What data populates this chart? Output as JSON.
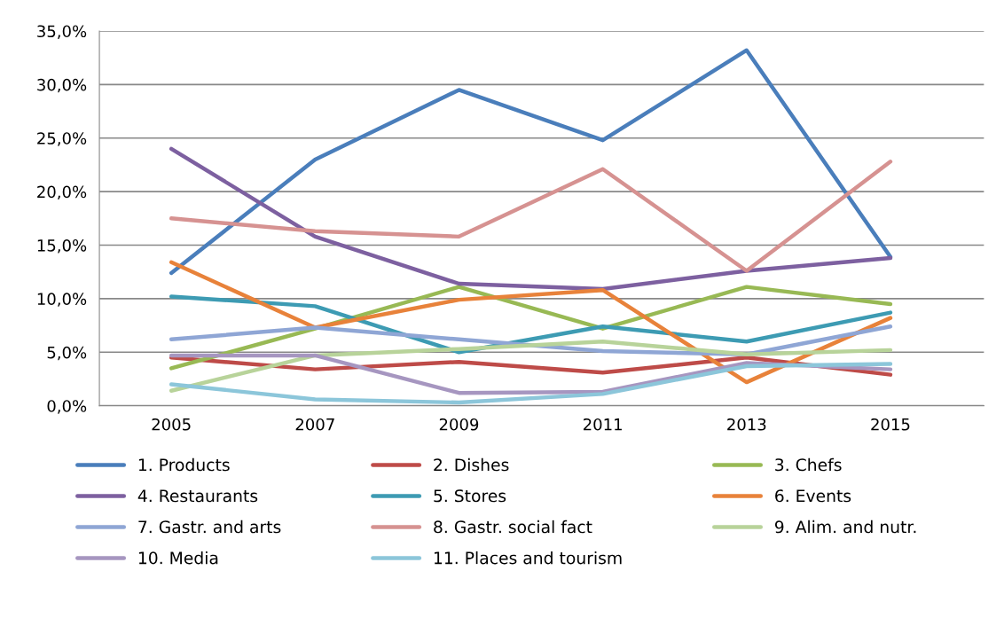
{
  "chart_data": {
    "type": "line",
    "categories": [
      "2005",
      "2007",
      "2009",
      "2011",
      "2013",
      "2015"
    ],
    "ylim": [
      0,
      35
    ],
    "yticks": [
      {
        "value": 0,
        "label": "0,0%"
      },
      {
        "value": 5,
        "label": "5,0%"
      },
      {
        "value": 10,
        "label": "10,0%"
      },
      {
        "value": 15,
        "label": "15,0%"
      },
      {
        "value": 20,
        "label": "20,0%"
      },
      {
        "value": 25,
        "label": "25,0%"
      },
      {
        "value": 30,
        "label": "30,0%"
      },
      {
        "value": 35,
        "label": "35,0%"
      }
    ],
    "grid": "y",
    "legend": "bottom",
    "marker": "none",
    "line_style": "solid",
    "series": [
      {
        "name": "1. Products",
        "color": "#4a7ebb",
        "values": [
          12.4,
          23.0,
          29.5,
          24.8,
          33.2,
          13.9
        ]
      },
      {
        "name": "2. Dishes",
        "color": "#be4b48",
        "values": [
          4.5,
          3.4,
          4.1,
          3.1,
          4.5,
          2.9
        ]
      },
      {
        "name": "3. Chefs",
        "color": "#98b954",
        "values": [
          3.5,
          7.2,
          11.1,
          7.2,
          11.1,
          9.5
        ]
      },
      {
        "name": "4. Restaurants",
        "color": "#7d60a0",
        "values": [
          24.0,
          15.8,
          11.4,
          10.9,
          12.6,
          13.8
        ]
      },
      {
        "name": "5. Stores",
        "color": "#3d9bb3",
        "values": [
          10.2,
          9.3,
          5.0,
          7.4,
          6.0,
          8.7
        ]
      },
      {
        "name": "6. Events",
        "color": "#e8823a",
        "values": [
          13.4,
          7.3,
          9.9,
          10.8,
          2.2,
          8.2
        ]
      },
      {
        "name": "7. Gastr. and arts",
        "color": "#8fa6d5",
        "values": [
          6.2,
          7.3,
          6.2,
          5.1,
          4.8,
          7.4
        ]
      },
      {
        "name": "8. Gastr. social fact",
        "color": "#d69291",
        "values": [
          17.5,
          16.3,
          15.8,
          22.1,
          12.6,
          22.8
        ]
      },
      {
        "name": "9. Alim. and nutr.",
        "color": "#b8d39a",
        "values": [
          1.4,
          4.7,
          5.3,
          6.0,
          4.8,
          5.2
        ]
      },
      {
        "name": "10. Media",
        "color": "#a696c0",
        "values": [
          4.7,
          4.7,
          1.2,
          1.3,
          4.0,
          3.4
        ]
      },
      {
        "name": "11. Places and tourism",
        "color": "#8cc6da",
        "values": [
          2.0,
          0.6,
          0.3,
          1.1,
          3.7,
          3.9
        ]
      }
    ]
  }
}
